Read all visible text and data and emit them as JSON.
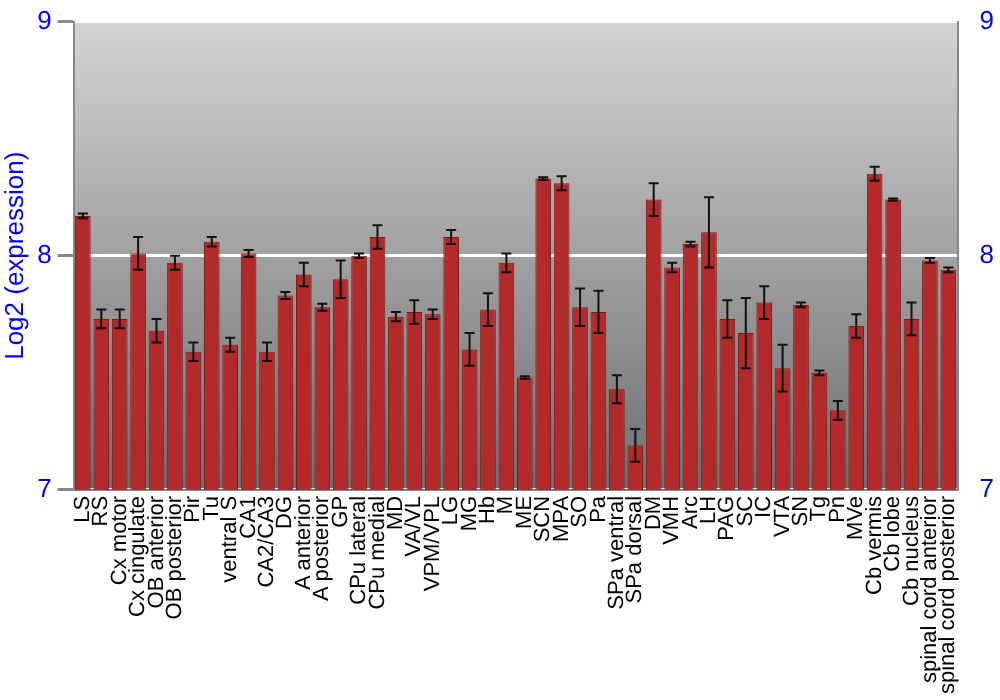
{
  "chart_data": {
    "type": "bar",
    "ylabel": "Log2 (expression)",
    "categories": [
      "LS",
      "RS",
      "Cx motor",
      "Cx cingulate",
      "OB anterior",
      "OB posterior",
      "Pir",
      "Tu",
      "ventral S",
      "CA1",
      "CA2/CA3",
      "DG",
      "A anterior",
      "A posterior",
      "GP",
      "CPu lateral",
      "CPu medial",
      "MD",
      "VA/VL",
      "VPM/VPL",
      "LG",
      "MG",
      "Hb",
      "M",
      "ME",
      "SCN",
      "MPA",
      "SO",
      "Pa",
      "SPa ventral",
      "SPa dorsal",
      "DM",
      "VMH",
      "Arc",
      "LH",
      "PAG",
      "SC",
      "IC",
      "VTA",
      "SN",
      "Tg",
      "Pn",
      "MVe",
      "Cb vermis",
      "Cb lobe",
      "Cb nucleus",
      "spinal cord anterior",
      "spinal cord posterior"
    ],
    "values": [
      8.17,
      7.73,
      7.73,
      8.01,
      7.68,
      7.97,
      7.59,
      8.06,
      7.62,
      8.01,
      7.59,
      7.83,
      7.92,
      7.78,
      7.9,
      8.0,
      8.08,
      7.74,
      7.76,
      7.75,
      8.08,
      7.6,
      7.77,
      7.97,
      7.48,
      8.33,
      8.31,
      7.78,
      7.76,
      7.43,
      7.19,
      8.24,
      7.95,
      8.05,
      8.1,
      7.73,
      7.67,
      7.8,
      7.52,
      7.79,
      7.5,
      7.34,
      7.7,
      8.35,
      8.24,
      7.73,
      7.98,
      7.94
    ],
    "errors": [
      0.01,
      0.04,
      0.04,
      0.07,
      0.05,
      0.03,
      0.04,
      0.02,
      0.03,
      0.015,
      0.04,
      0.015,
      0.05,
      0.015,
      0.08,
      0.01,
      0.05,
      0.02,
      0.05,
      0.02,
      0.03,
      0.07,
      0.07,
      0.04,
      0.005,
      0.005,
      0.03,
      0.08,
      0.09,
      0.06,
      0.07,
      0.07,
      0.02,
      0.01,
      0.15,
      0.08,
      0.15,
      0.07,
      0.1,
      0.01,
      0.01,
      0.04,
      0.05,
      0.03,
      0.005,
      0.07,
      0.01,
      0.01
    ],
    "color": "#b22a2a",
    "ylim": [
      7,
      9
    ],
    "yticks": [
      7,
      8,
      9
    ],
    "y2lim": [
      7,
      9
    ],
    "y2ticks": [
      7,
      8,
      9
    ],
    "grid": "y",
    "legend": false
  }
}
